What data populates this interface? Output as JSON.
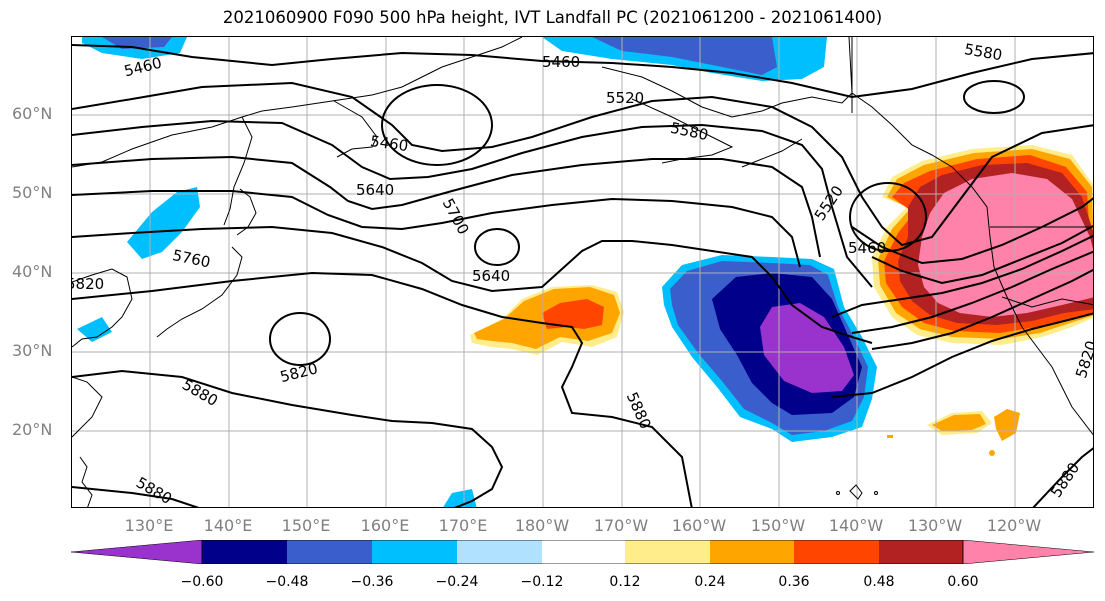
{
  "title": "2021060900 F090 500 hPa height, IVT Landfall PC (2021061200 - 2021061400)",
  "lat_labels": [
    "60°N",
    "50°N",
    "40°N",
    "30°N",
    "20°N"
  ],
  "lon_labels": [
    "130°E",
    "140°E",
    "150°E",
    "160°E",
    "170°E",
    "180°W",
    "170°W",
    "160°W",
    "150°W",
    "140°W",
    "130°W",
    "120°W"
  ],
  "contour_labels": [
    "5460",
    "5460",
    "5580",
    "5520",
    "5580",
    "5460",
    "5640",
    "5700",
    "5640",
    "5760",
    "5820",
    "5880",
    "5880",
    "5880",
    "5520",
    "5460",
    "5820",
    "5880",
    "5820"
  ],
  "colorbar": {
    "ticks": [
      "−0.60",
      "−0.48",
      "−0.36",
      "−0.24",
      "−0.12",
      "0.12",
      "0.24",
      "0.36",
      "0.48",
      "0.60"
    ],
    "colors": [
      "#9a32cd",
      "#00008b",
      "#3a5fcd",
      "#00bfff",
      "#b0e2ff",
      "#ffffff",
      "#ffec8b",
      "#ffa500",
      "#ff4500",
      "#b22222",
      "#ff82ab"
    ]
  },
  "colors": {
    "grid": "#b0b0b0",
    "tick_label": "#808080",
    "contour": "#000000"
  }
}
